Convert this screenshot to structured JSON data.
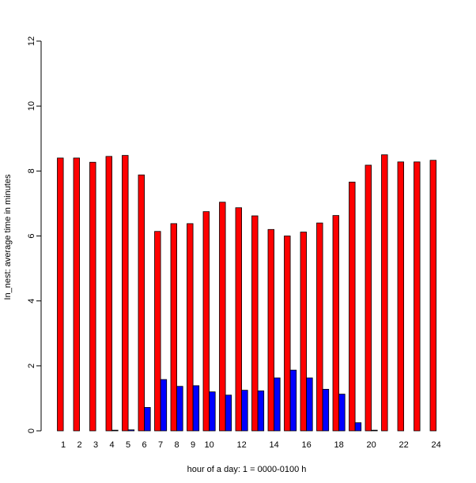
{
  "chart_data": {
    "type": "bar",
    "categories": [
      1,
      2,
      3,
      4,
      5,
      6,
      7,
      8,
      9,
      10,
      11,
      12,
      13,
      14,
      15,
      16,
      17,
      18,
      19,
      20,
      21,
      22,
      23,
      24
    ],
    "category_tick_labels": [
      "1",
      "2",
      "3",
      "4",
      "5",
      "6",
      "7",
      "8",
      "9",
      "10",
      "12",
      "14",
      "16",
      "18",
      "20",
      "22",
      "24"
    ],
    "series": [
      {
        "color": "#ff0000",
        "values": [
          8.4,
          8.4,
          8.27,
          8.45,
          8.48,
          7.88,
          6.14,
          6.38,
          6.38,
          6.75,
          7.04,
          6.87,
          6.62,
          6.2,
          6.0,
          6.12,
          6.4,
          6.63,
          7.66,
          8.18,
          8.5,
          8.28,
          8.28,
          8.33
        ]
      },
      {
        "color": "#0000ff",
        "values": [
          0.0,
          0.0,
          0.0,
          0.02,
          0.03,
          0.72,
          1.58,
          1.37,
          1.39,
          1.2,
          1.1,
          1.25,
          1.23,
          1.63,
          1.87,
          1.63,
          1.28,
          1.13,
          0.25,
          0.02,
          0.0,
          0.0,
          0.0,
          0.0
        ]
      }
    ],
    "xlabel": "hour of a day: 1 = 0000-0100 h",
    "ylabel": "In_nest: average time in minutes",
    "ylim": [
      0,
      12
    ],
    "yticks": [
      0,
      2,
      4,
      6,
      8,
      10,
      12
    ],
    "grid": false,
    "legend": "none"
  }
}
